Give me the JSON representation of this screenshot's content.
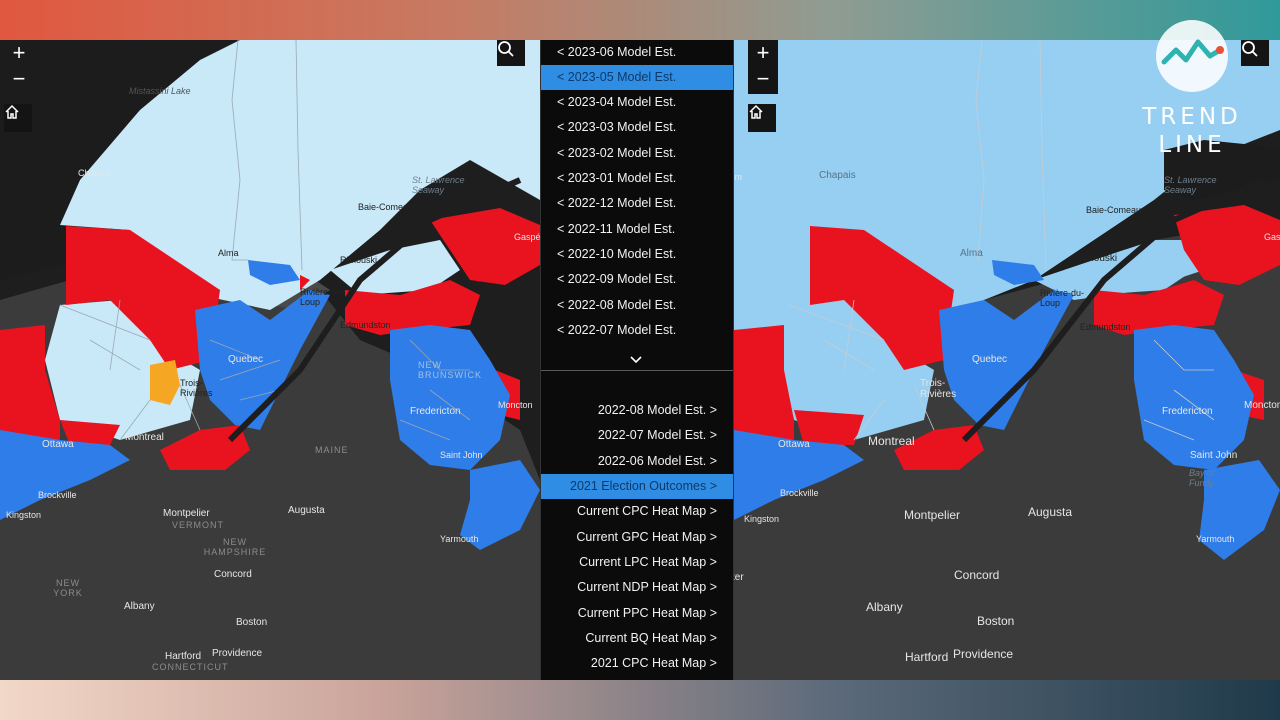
{
  "menu": {
    "previous_items": [
      {
        "label": "< 2023-06 Model Est.",
        "selected": false
      },
      {
        "label": "< 2023-05 Model Est.",
        "selected": true
      },
      {
        "label": "< 2023-04 Model Est.",
        "selected": false
      },
      {
        "label": "< 2023-03 Model Est.",
        "selected": false
      },
      {
        "label": "< 2023-02 Model Est.",
        "selected": false
      },
      {
        "label": "< 2023-01 Model Est.",
        "selected": false
      },
      {
        "label": "< 2022-12 Model Est.",
        "selected": false
      },
      {
        "label": "< 2022-11 Model Est.",
        "selected": false
      },
      {
        "label": "< 2022-10 Model Est.",
        "selected": false
      },
      {
        "label": "< 2022-09 Model Est.",
        "selected": false
      },
      {
        "label": "< 2022-08 Model Est.",
        "selected": false
      },
      {
        "label": "< 2022-07 Model Est.",
        "selected": false
      }
    ],
    "next_items": [
      {
        "label": "2022-08 Model Est. >",
        "selected": false
      },
      {
        "label": "2022-07 Model Est. >",
        "selected": false
      },
      {
        "label": "2022-06 Model Est. >",
        "selected": false
      },
      {
        "label": "2021 Election Outcomes >",
        "selected": true
      },
      {
        "label": "Current CPC Heat Map >",
        "selected": false
      },
      {
        "label": "Current GPC Heat Map >",
        "selected": false
      },
      {
        "label": "Current LPC Heat Map >",
        "selected": false
      },
      {
        "label": "Current NDP Heat Map >",
        "selected": false
      },
      {
        "label": "Current PPC Heat Map >",
        "selected": false
      },
      {
        "label": "Current BQ Heat Map >",
        "selected": false
      },
      {
        "label": "2021 CPC Heat Map >",
        "selected": false
      }
    ]
  },
  "map_controls": {
    "zoom_in": "+",
    "zoom_out": "−"
  },
  "left_map": {
    "places": {
      "mistassini_lake": "Mistassini Lake",
      "chapais": "Chapais",
      "st_lawrence_seaway": "St. Lawrence Seaway",
      "baie_comeau": "Baie-Comeau",
      "gaspe": "Gaspé",
      "alma": "Alma",
      "rimouski": "Rimouski",
      "riviere_du_loup": "Rivière-du-Loup",
      "edmundston": "Edmundston",
      "quebec": "Quebec",
      "new_brunswick": "NEW BRUNSWICK",
      "trois_rivieres": "Trois-Rivières",
      "fredericton": "Fredericton",
      "moncton": "Moncton",
      "ottawa": "Ottawa",
      "montreal": "Montreal",
      "maine": "MAINE",
      "saint_john": "Saint John",
      "brockville": "Brockville",
      "kingston": "Kingston",
      "montpelier": "Montpelier",
      "vermont": "VERMONT",
      "augusta": "Augusta",
      "new_hampshire": "NEW HAMPSHIRE",
      "yarmouth": "Yarmouth",
      "concord": "Concord",
      "new_york": "NEW YORK",
      "albany": "Albany",
      "boston": "Boston",
      "hartford": "Hartford",
      "providence": "Providence",
      "connecticut": "CONNECTICUT"
    }
  },
  "right_map": {
    "places": {
      "chapais": "Chapais",
      "st_lawrence_seaway": "St. Lawrence Seaway",
      "baie_comeau": "Baie-Comeau",
      "alma": "Alma",
      "rimouski": "Rimouski",
      "riviere_du_loup": "Rivière-du-Loup",
      "edmundston": "Edmundston",
      "quebec": "Quebec",
      "trois_rivieres": "Trois-Rivières",
      "fredericton": "Fredericton",
      "moncton": "Moncton",
      "ottawa": "Ottawa",
      "montreal": "Montreal",
      "saint_john": "Saint John",
      "bay_of_fundy": "Bay of Fundy",
      "brockville": "Brockville",
      "kingston": "Kingston",
      "montpelier": "Montpelier",
      "augusta": "Augusta",
      "yarmouth": "Yarmouth",
      "concord": "Concord",
      "albany": "Albany",
      "boston": "Boston",
      "hartford": "Hartford",
      "providence": "Providence",
      "gaspe": "Gaspé",
      "fragment_left": "Im",
      "fragment_left2": "ter"
    }
  },
  "logo": {
    "line1": "TREND",
    "line2": "LINE"
  },
  "colors": {
    "liberal_red": "#e8131e",
    "conservative_blue": "#2f7de8",
    "bloc_light": "#c9e8f8",
    "bloc_right": "#96cff2",
    "ndp_orange": "#f5a623",
    "land_dark": "#3a3a3a",
    "water_dark": "#1e1e1e"
  }
}
